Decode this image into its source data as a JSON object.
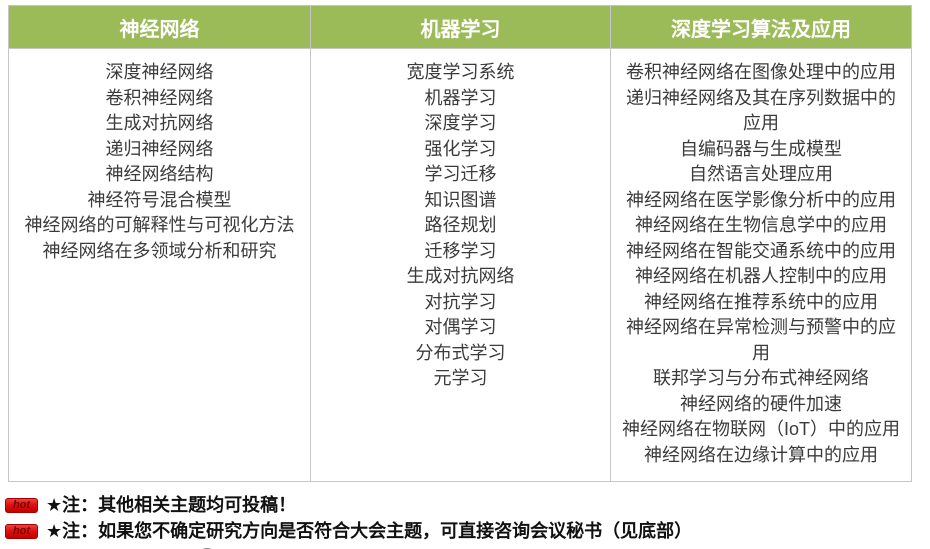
{
  "table": {
    "columns": [
      {
        "header": "神经网络",
        "items": [
          "深度神经网络",
          "卷积神经网络",
          "生成对抗网络",
          "递归神经网络",
          "神经网络结构",
          "神经符号混合模型",
          "神经网络的可解释性与可视化方法",
          "神经网络在多领域分析和研究"
        ]
      },
      {
        "header": "机器学习",
        "items": [
          "宽度学习系统",
          "机器学习",
          "深度学习",
          "强化学习",
          "学习迁移",
          "知识图谱",
          "路径规划",
          "迁移学习",
          "生成对抗网络",
          "对抗学习",
          "对偶学习",
          "分布式学习",
          "元学习"
        ]
      },
      {
        "header": "深度学习算法及应用",
        "items": [
          "卷积神经网络在图像处理中的应用",
          "递归神经网络及其在序列数据中的应用",
          "自编码器与生成模型",
          "自然语言处理应用",
          "神经网络在医学影像分析中的应用",
          "神经网络在生物信息学中的应用",
          "神经网络在智能交通系统中的应用",
          "神经网络在机器人控制中的应用",
          "神经网络在推荐系统中的应用",
          "神经网络在异常检测与预警中的应用",
          "联邦学习与分布式神经网络",
          "神经网络的硬件加速",
          "神经网络在物联网（IoT）中的应用",
          "神经网络在边缘计算中的应用"
        ]
      }
    ]
  },
  "notes": [
    {
      "icon_label": "hot",
      "text": "★注：其他相关主题均可投稿！"
    },
    {
      "icon_label": "hot",
      "text": "★注：如果您不确定研究方向是否符合大会主题，可直接咨询会议秘书（见底部）"
    }
  ],
  "colors": {
    "header_bg": "#9bbb59",
    "header_text": "#ffffff",
    "border": "#c6c6c6",
    "body_text": "#3b3b3b",
    "note_text": "#111111",
    "hot_badge": "#dd1111"
  }
}
